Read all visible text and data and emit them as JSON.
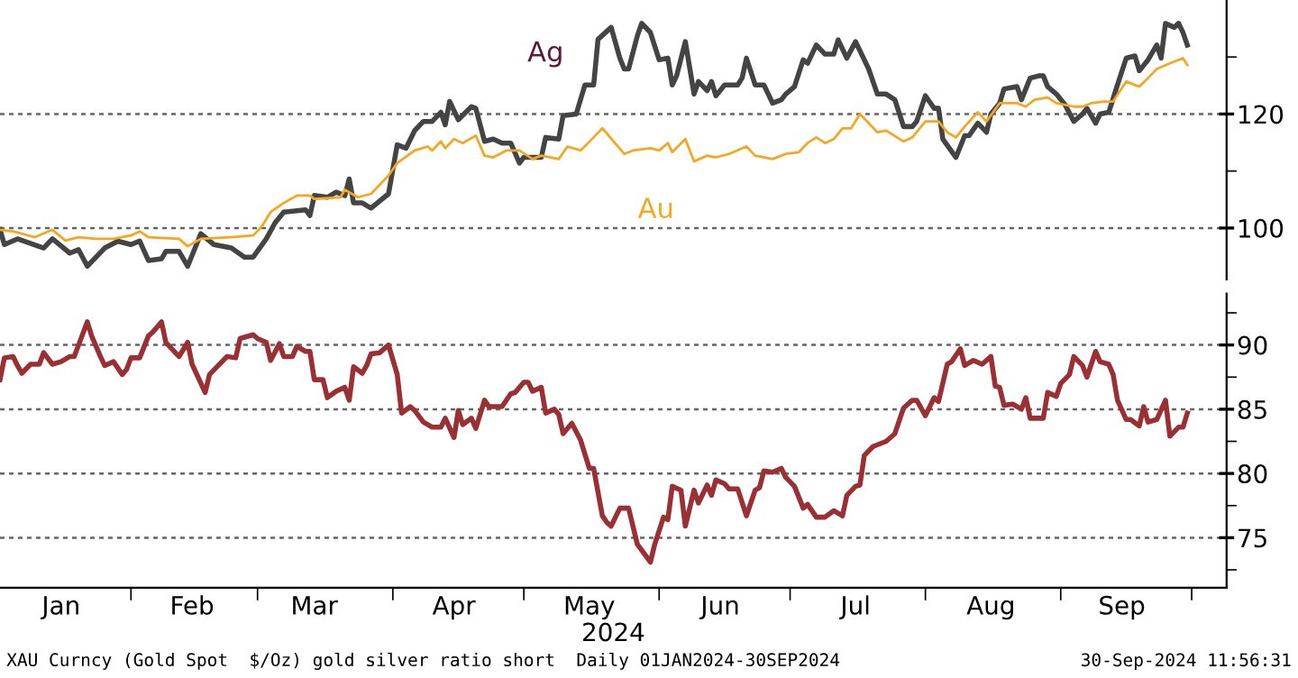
{
  "chart_data": [
    {
      "type": "line",
      "tick_labels": "y",
      "grid": "y",
      "xlim": [
        "2024-01-02",
        "2024-10-09"
      ],
      "ylim": [
        91,
        140
      ],
      "yticks": [
        {
          "value": 100,
          "label": "100"
        },
        {
          "value": 110,
          "label": null
        },
        {
          "value": 120,
          "label": "120"
        },
        {
          "value": 130,
          "label": null
        }
      ],
      "series": [
        {
          "name": "Ag",
          "color": "#444444",
          "x": [
            "2024-01-02",
            "2024-01-03",
            "2024-01-06",
            "2024-01-12",
            "2024-01-14",
            "2024-01-18",
            "2024-01-20",
            "2024-01-22",
            "2024-01-26",
            "2024-01-29",
            "2024-02-01",
            "2024-02-03",
            "2024-02-05",
            "2024-02-08",
            "2024-02-09",
            "2024-02-12",
            "2024-02-14",
            "2024-02-17",
            "2024-02-20",
            "2024-02-24",
            "2024-02-27",
            "2024-02-29",
            "2024-03-03",
            "2024-03-05",
            "2024-03-07",
            "2024-03-12",
            "2024-03-13",
            "2024-03-14",
            "2024-03-17",
            "2024-03-19",
            "2024-03-21",
            "2024-03-22",
            "2024-03-23",
            "2024-03-25",
            "2024-03-27",
            "2024-03-31",
            "2024-04-02",
            "2024-04-04",
            "2024-04-06",
            "2024-04-08",
            "2024-04-10",
            "2024-04-12",
            "2024-04-13",
            "2024-04-14",
            "2024-04-16",
            "2024-04-19",
            "2024-04-20",
            "2024-04-22",
            "2024-04-24",
            "2024-04-26",
            "2024-04-28",
            "2024-04-30",
            "2024-05-01",
            "2024-05-05",
            "2024-05-06",
            "2024-05-09",
            "2024-05-10",
            "2024-05-13",
            "2024-05-15",
            "2024-05-17",
            "2024-05-18",
            "2024-05-21",
            "2024-05-23",
            "2024-05-24",
            "2024-05-25",
            "2024-05-27",
            "2024-05-28",
            "2024-05-30",
            "2024-06-01",
            "2024-06-03",
            "2024-06-04",
            "2024-06-05",
            "2024-06-07",
            "2024-06-09",
            "2024-06-10",
            "2024-06-12",
            "2024-06-13",
            "2024-06-14",
            "2024-06-16",
            "2024-06-19",
            "2024-06-20",
            "2024-06-21",
            "2024-06-23",
            "2024-06-25",
            "2024-06-27",
            "2024-06-29",
            "2024-06-30",
            "2024-07-02",
            "2024-07-04",
            "2024-07-05",
            "2024-07-07",
            "2024-07-09",
            "2024-07-11",
            "2024-07-12",
            "2024-07-14",
            "2024-07-16",
            "2024-07-19",
            "2024-07-21",
            "2024-07-23",
            "2024-07-25",
            "2024-07-27",
            "2024-07-29",
            "2024-07-30",
            "2024-08-01",
            "2024-08-03",
            "2024-08-04",
            "2024-08-05",
            "2024-08-08",
            "2024-08-10",
            "2024-08-11",
            "2024-08-13",
            "2024-08-15",
            "2024-08-16",
            "2024-08-18",
            "2024-08-19",
            "2024-08-22",
            "2024-08-23",
            "2024-08-25",
            "2024-08-27",
            "2024-08-28",
            "2024-08-29",
            "2024-08-31",
            "2024-09-02",
            "2024-09-04",
            "2024-09-06",
            "2024-09-07",
            "2024-09-09",
            "2024-09-10",
            "2024-09-12",
            "2024-09-14",
            "2024-09-16",
            "2024-09-18",
            "2024-09-19",
            "2024-09-21",
            "2024-09-23",
            "2024-09-24",
            "2024-09-25",
            "2024-09-27",
            "2024-09-28",
            "2024-09-29",
            "2024-09-30"
          ],
          "values": [
            99.7,
            97.1,
            98.1,
            96.5,
            98.1,
            95.6,
            96.2,
            93.3,
            96.5,
            97.7,
            97.1,
            97.7,
            94.3,
            94.6,
            95.9,
            95.9,
            93.3,
            99,
            97.1,
            96.5,
            94.9,
            94.9,
            98.1,
            100.9,
            102.8,
            103.2,
            102.2,
            105.7,
            105.4,
            106.3,
            105.7,
            108.6,
            104.4,
            104.4,
            103.5,
            106,
            114.6,
            114,
            117.1,
            118.7,
            118.7,
            120.3,
            118.1,
            122.2,
            119,
            121.3,
            121,
            115.2,
            115.6,
            114.9,
            114.9,
            111.4,
            112.4,
            112.4,
            115.9,
            115.6,
            119.7,
            120,
            125.1,
            125.1,
            133.1,
            135.2,
            129.8,
            127.9,
            127.9,
            133.7,
            135.9,
            134.3,
            129.5,
            129.8,
            125.1,
            126.7,
            132.7,
            123.5,
            125.7,
            124.1,
            125.7,
            123.2,
            125.1,
            125.1,
            126.3,
            129.8,
            125.1,
            125.1,
            121.9,
            122.5,
            123.5,
            124.8,
            129.5,
            128.9,
            132.1,
            130.5,
            130.5,
            133,
            129.8,
            132.7,
            127.9,
            123.5,
            123.5,
            122.5,
            117.8,
            117.8,
            118.7,
            123.2,
            121,
            121,
            115.6,
            112.4,
            116.2,
            116.2,
            118.4,
            116.8,
            120,
            121.9,
            124.4,
            124.8,
            122.5,
            126.3,
            126.7,
            126.7,
            124.8,
            123.5,
            121.6,
            118.7,
            120,
            121,
            118.4,
            120,
            120.3,
            125.1,
            129.8,
            130.2,
            127.6,
            129.5,
            132.1,
            129.8,
            135.9,
            135.2,
            135.9,
            134.3,
            132.1
          ]
        },
        {
          "name": "Au",
          "color": "#f5a623",
          "x": [
            "2024-01-02",
            "2024-01-05",
            "2024-01-10",
            "2024-01-14",
            "2024-01-17",
            "2024-01-20",
            "2024-01-24",
            "2024-01-28",
            "2024-02-01",
            "2024-02-03",
            "2024-02-05",
            "2024-02-12",
            "2024-02-14",
            "2024-02-17",
            "2024-02-24",
            "2024-02-29",
            "2024-03-02",
            "2024-03-04",
            "2024-03-07",
            "2024-03-10",
            "2024-03-13",
            "2024-03-14",
            "2024-03-20",
            "2024-03-21",
            "2024-03-24",
            "2024-03-27",
            "2024-03-31",
            "2024-04-02",
            "2024-04-06",
            "2024-04-09",
            "2024-04-10",
            "2024-04-12",
            "2024-04-13",
            "2024-04-15",
            "2024-04-17",
            "2024-04-20",
            "2024-04-22",
            "2024-04-24",
            "2024-04-27",
            "2024-04-30",
            "2024-05-03",
            "2024-05-05",
            "2024-05-09",
            "2024-05-11",
            "2024-05-14",
            "2024-05-17",
            "2024-05-19",
            "2024-05-24",
            "2024-05-26",
            "2024-05-30",
            "2024-06-01",
            "2024-06-03",
            "2024-06-04",
            "2024-06-07",
            "2024-06-09",
            "2024-06-12",
            "2024-06-14",
            "2024-06-17",
            "2024-06-21",
            "2024-06-23",
            "2024-06-27",
            "2024-06-30",
            "2024-07-03",
            "2024-07-05",
            "2024-07-07",
            "2024-07-09",
            "2024-07-11",
            "2024-07-13",
            "2024-07-15",
            "2024-07-17",
            "2024-07-19",
            "2024-07-21",
            "2024-07-23",
            "2024-07-27",
            "2024-07-29",
            "2024-08-01",
            "2024-08-04",
            "2024-08-06",
            "2024-08-08",
            "2024-08-10",
            "2024-08-13",
            "2024-08-15",
            "2024-08-18",
            "2024-08-22",
            "2024-08-24",
            "2024-08-26",
            "2024-08-29",
            "2024-08-31",
            "2024-09-04",
            "2024-09-06",
            "2024-09-08",
            "2024-09-11",
            "2024-09-13",
            "2024-09-16",
            "2024-09-19",
            "2024-09-21",
            "2024-09-23",
            "2024-09-26",
            "2024-09-29",
            "2024-09-30"
          ],
          "values": [
            99.7,
            99.4,
            98.4,
            99.7,
            97.8,
            98.4,
            98.1,
            98.1,
            98.7,
            99.4,
            98.4,
            98.1,
            96.8,
            98.1,
            98.4,
            98.7,
            100.3,
            102.8,
            104.4,
            105.7,
            105.7,
            105.1,
            105.4,
            106.7,
            105.4,
            106,
            109.2,
            111.4,
            113.6,
            114.3,
            113.6,
            115.2,
            114,
            115.6,
            114.9,
            116.2,
            112.7,
            112.4,
            113.6,
            113.6,
            112.1,
            112.7,
            112.1,
            114.3,
            113.6,
            115.9,
            117.5,
            113,
            113.6,
            114,
            113.6,
            114.9,
            113.3,
            115.6,
            111.7,
            112.7,
            112.4,
            113,
            114.3,
            112.7,
            112.1,
            113,
            113.3,
            114.9,
            115.9,
            114.9,
            115.6,
            117.5,
            117.5,
            120,
            118.4,
            116.8,
            117.1,
            115.2,
            115.9,
            118.7,
            118.7,
            116.8,
            115.9,
            117.8,
            120.3,
            118.7,
            121.9,
            121.9,
            121.3,
            122.5,
            122.9,
            121.9,
            121.3,
            121.3,
            121.9,
            122.2,
            122.2,
            125.7,
            124.8,
            126.3,
            127.9,
            128.9,
            129.8,
            128.6
          ]
        }
      ]
    },
    {
      "type": "line",
      "grid": "y",
      "xlabel": "2024",
      "xlim": [
        "2024-01-02",
        "2024-10-09"
      ],
      "xticks": [
        {
          "value": "2024-02-01",
          "label": null
        },
        {
          "value": "2024-03-01",
          "label": null
        },
        {
          "value": "2024-04-01",
          "label": null
        },
        {
          "value": "2024-05-01",
          "label": null
        },
        {
          "value": "2024-06-01",
          "label": null
        },
        {
          "value": "2024-07-01",
          "label": null
        },
        {
          "value": "2024-08-01",
          "label": null
        },
        {
          "value": "2024-09-01",
          "label": null
        },
        {
          "value": "2024-10-01",
          "label": null
        },
        {
          "value": "2024-01-16",
          "label": "Jan"
        },
        {
          "value": "2024-02-15",
          "label": "Feb"
        },
        {
          "value": "2024-03-14",
          "label": "Mar"
        },
        {
          "value": "2024-04-15",
          "label": "Apr"
        },
        {
          "value": "2024-05-16",
          "label": "May"
        },
        {
          "value": "2024-06-15",
          "label": "Jun"
        },
        {
          "value": "2024-07-16",
          "label": "Jul"
        },
        {
          "value": "2024-08-16",
          "label": "Aug"
        },
        {
          "value": "2024-09-15",
          "label": "Sep"
        }
      ],
      "ylim": [
        71.1,
        94
      ],
      "yticks": [
        {
          "value": 72.5,
          "label": null
        },
        75,
        {
          "value": 77.5,
          "label": null
        },
        80,
        {
          "value": 82.5,
          "label": null
        },
        85,
        {
          "value": 87.5,
          "label": null
        },
        90,
        {
          "value": 92.5,
          "label": null
        }
      ],
      "annotations": [
        "XAU Curncy (Gold Spot  $/Oz) gold silver ratio short  Daily 01JAN2024-30SEP2024",
        "30-Sep-2024 11:56:31"
      ],
      "series": [
        {
          "color": "#9b3034",
          "x": [
            "2024-01-02",
            "2024-01-03",
            "2024-01-05",
            "2024-01-06",
            "2024-01-07",
            "2024-01-09",
            "2024-01-11",
            "2024-01-12",
            "2024-01-14",
            "2024-01-16",
            "2024-01-18",
            "2024-01-19",
            "2024-01-20",
            "2024-01-22",
            "2024-01-23",
            "2024-01-25",
            "2024-01-26",
            "2024-01-28",
            "2024-01-30",
            "2024-01-31",
            "2024-02-01",
            "2024-02-03",
            "2024-02-05",
            "2024-02-06",
            "2024-02-08",
            "2024-02-09",
            "2024-02-12",
            "2024-02-14",
            "2024-02-15",
            "2024-02-18",
            "2024-02-19",
            "2024-02-21",
            "2024-02-23",
            "2024-02-25",
            "2024-02-26",
            "2024-02-29",
            "2024-03-01",
            "2024-03-03",
            "2024-03-04",
            "2024-03-06",
            "2024-03-07",
            "2024-03-09",
            "2024-03-10",
            "2024-03-12",
            "2024-03-13",
            "2024-03-14",
            "2024-03-16",
            "2024-03-17",
            "2024-03-19",
            "2024-03-21",
            "2024-03-22",
            "2024-03-23",
            "2024-03-25",
            "2024-03-26",
            "2024-03-27",
            "2024-03-29",
            "2024-03-31",
            "2024-04-02",
            "2024-04-03",
            "2024-04-05",
            "2024-04-06",
            "2024-04-08",
            "2024-04-10",
            "2024-04-12",
            "2024-04-13",
            "2024-04-15",
            "2024-04-16",
            "2024-04-17",
            "2024-04-19",
            "2024-04-20",
            "2024-04-22",
            "2024-04-23",
            "2024-04-26",
            "2024-04-28",
            "2024-04-29",
            "2024-05-01",
            "2024-05-02",
            "2024-05-03",
            "2024-05-05",
            "2024-05-06",
            "2024-05-08",
            "2024-05-09",
            "2024-05-10",
            "2024-05-12",
            "2024-05-14",
            "2024-05-16",
            "2024-05-17",
            "2024-05-19",
            "2024-05-20",
            "2024-05-21",
            "2024-05-23",
            "2024-05-25",
            "2024-05-27",
            "2024-05-30",
            "2024-05-31",
            "2024-06-02",
            "2024-06-03",
            "2024-06-04",
            "2024-06-06",
            "2024-06-07",
            "2024-06-09",
            "2024-06-10",
            "2024-06-12",
            "2024-06-13",
            "2024-06-14",
            "2024-06-16",
            "2024-06-17",
            "2024-06-19",
            "2024-06-21",
            "2024-06-23",
            "2024-06-24",
            "2024-06-25",
            "2024-06-27",
            "2024-06-29",
            "2024-06-30",
            "2024-07-02",
            "2024-07-04",
            "2024-07-05",
            "2024-07-07",
            "2024-07-09",
            "2024-07-11",
            "2024-07-13",
            "2024-07-14",
            "2024-07-16",
            "2024-07-17",
            "2024-07-18",
            "2024-07-20",
            "2024-07-23",
            "2024-07-25",
            "2024-07-27",
            "2024-07-29",
            "2024-07-30",
            "2024-08-01",
            "2024-08-03",
            "2024-08-04",
            "2024-08-06",
            "2024-08-07",
            "2024-08-09",
            "2024-08-10",
            "2024-08-12",
            "2024-08-14",
            "2024-08-16",
            "2024-08-17",
            "2024-08-18",
            "2024-08-19",
            "2024-08-21",
            "2024-08-23",
            "2024-08-24",
            "2024-08-25",
            "2024-08-28",
            "2024-08-29",
            "2024-08-31",
            "2024-09-01",
            "2024-09-03",
            "2024-09-04",
            "2024-09-06",
            "2024-09-07",
            "2024-09-09",
            "2024-09-10",
            "2024-09-12",
            "2024-09-13",
            "2024-09-14",
            "2024-09-16",
            "2024-09-17",
            "2024-09-19",
            "2024-09-20",
            "2024-09-21",
            "2024-09-23",
            "2024-09-25",
            "2024-09-26",
            "2024-09-28",
            "2024-09-29",
            "2024-09-30"
          ],
          "values": [
            87.3,
            89,
            89.1,
            88.4,
            87.8,
            88.5,
            88.5,
            89.4,
            88.5,
            88.7,
            89.1,
            89.1,
            90,
            91.8,
            90.7,
            89.1,
            88.4,
            88.7,
            87.7,
            88.1,
            89,
            89,
            90.7,
            91,
            91.8,
            90.2,
            89.1,
            90.2,
            88.5,
            86.3,
            87.7,
            88.4,
            89.1,
            89,
            90.5,
            90.8,
            90.5,
            90.2,
            88.8,
            90.1,
            89.1,
            89.1,
            89.9,
            89.5,
            89.5,
            87.3,
            87.3,
            85.9,
            86.4,
            86.7,
            85.7,
            88.3,
            87.8,
            88.4,
            89.3,
            89.4,
            90,
            87.7,
            84.7,
            85.2,
            84.9,
            84,
            83.6,
            83.6,
            84.3,
            82.8,
            84.9,
            83.8,
            84.3,
            83.5,
            85.7,
            85.2,
            85.2,
            86.2,
            86.3,
            87.1,
            87.1,
            86.4,
            86.7,
            84.7,
            85,
            84.6,
            83.1,
            83.9,
            82.6,
            80.4,
            80.4,
            76.7,
            76.2,
            75.9,
            77.3,
            77.3,
            74.5,
            73.1,
            74.5,
            76.6,
            76.4,
            79,
            78.7,
            75.9,
            78.7,
            77.7,
            79.1,
            78.3,
            79.5,
            79.2,
            78.8,
            78.8,
            76.7,
            78.7,
            78.9,
            80.2,
            80.1,
            80.4,
            79.7,
            79,
            77.3,
            77.6,
            76.6,
            76.6,
            77.1,
            76.7,
            78.3,
            79,
            79.1,
            81.4,
            82.1,
            82.5,
            83.1,
            85.1,
            85.7,
            85.7,
            84.5,
            85.9,
            85.6,
            88.5,
            88.7,
            89.7,
            88.4,
            88.8,
            88.5,
            89.1,
            86.8,
            86.7,
            85.3,
            85.4,
            85,
            85.9,
            84.3,
            84.3,
            86.3,
            86,
            87,
            87.7,
            89.1,
            88.4,
            87.5,
            89.5,
            88.7,
            88.5,
            87.7,
            85.7,
            84.2,
            84.2,
            83.7,
            85.2,
            84,
            84.2,
            85.7,
            82.9,
            83.6,
            83.6,
            84.7
          ]
        }
      ]
    }
  ]
}
